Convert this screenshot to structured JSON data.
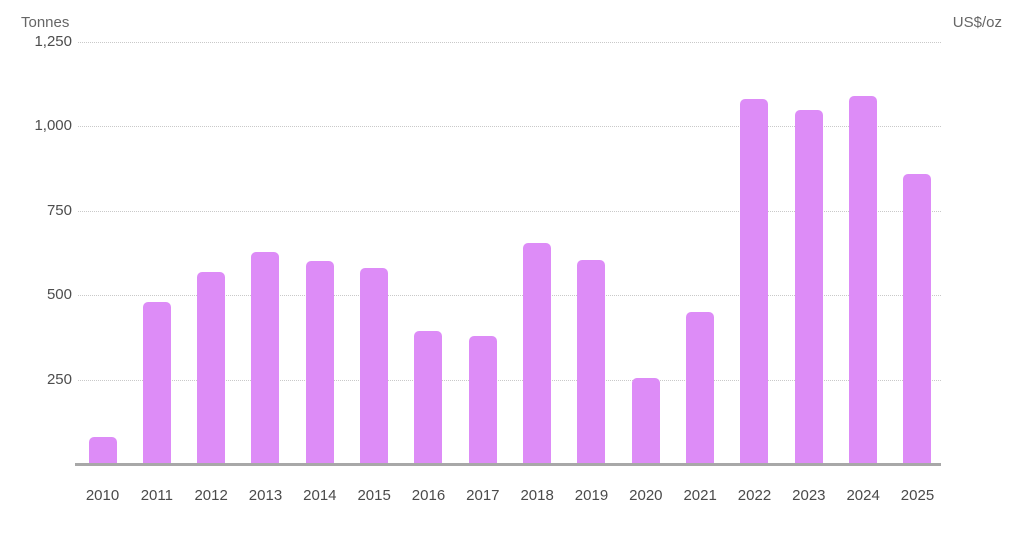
{
  "chart_data": {
    "type": "bar",
    "title": "",
    "ylabel_left": "Tonnes",
    "ylabel_right": "US$/oz",
    "categories": [
      "2010",
      "2011",
      "2012",
      "2013",
      "2014",
      "2015",
      "2016",
      "2017",
      "2018",
      "2019",
      "2020",
      "2021",
      "2022",
      "2023",
      "2024",
      "2025"
    ],
    "values": [
      79,
      481,
      569,
      629,
      601,
      580,
      395,
      379,
      656,
      605,
      255,
      450,
      1080,
      1050,
      1090,
      860
    ],
    "ylim": [
      0,
      1250
    ],
    "y_ticks": [
      250,
      500,
      750,
      1000,
      1250
    ],
    "y_tick_labels": [
      "250",
      "500",
      "750",
      "1,000",
      "1,250"
    ],
    "grid": "horizontal-dotted",
    "legend_position": "none",
    "bar_color": "#dd8cf7",
    "baseline_color": "#a8a8a8",
    "gridline_color": "#c9c9c9"
  }
}
